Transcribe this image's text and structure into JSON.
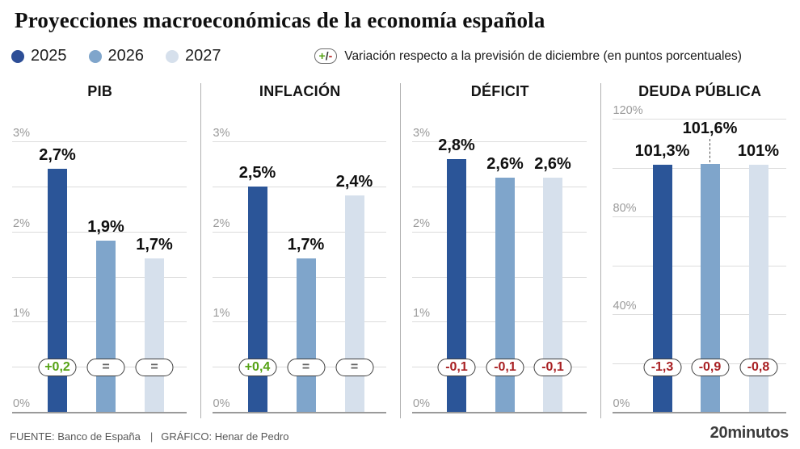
{
  "header": {
    "title": "Proyecciones macroeconómicas de la economía española",
    "legend": [
      {
        "label": "2025",
        "color": "#2d4e96"
      },
      {
        "label": "2026",
        "color": "#7fa5cb"
      },
      {
        "label": "2027",
        "color": "#d6e0ec"
      }
    ],
    "note_icon": {
      "plus": "+",
      "slash": "/",
      "minus": "-"
    },
    "note": "Variación respecto a la previsión de diciembre (en puntos porcentuales)"
  },
  "colors": {
    "bar_2025": "#2b5598",
    "bar_2026": "#7fa5cb",
    "bar_2027": "#d6e0ec",
    "positive": "#55a214",
    "negative": "#a81f22",
    "neutral": "#636363",
    "gridline": "#dcdcdc",
    "axis": "#9a9a9a"
  },
  "chart_data": [
    {
      "type": "bar",
      "title": "PIB",
      "categories": [
        "2025",
        "2026",
        "2027"
      ],
      "values": [
        2.7,
        1.9,
        1.7
      ],
      "value_labels": [
        "2,7%",
        "1,9%",
        "1,7%"
      ],
      "deltas": [
        "+0,2",
        "=",
        "="
      ],
      "ylim": [
        0,
        3
      ],
      "yticks": [
        {
          "value": 0,
          "label": "0%"
        },
        {
          "value": 0.5,
          "label": ""
        },
        {
          "value": 1,
          "label": "1%"
        },
        {
          "value": 1.5,
          "label": ""
        },
        {
          "value": 2,
          "label": "2%"
        },
        {
          "value": 2.5,
          "label": ""
        },
        {
          "value": 3,
          "label": "3%"
        }
      ],
      "label_raised": [
        false,
        false,
        false
      ]
    },
    {
      "type": "bar",
      "title": "INFLACIÓN",
      "categories": [
        "2025",
        "2026",
        "2027"
      ],
      "values": [
        2.5,
        1.7,
        2.4
      ],
      "value_labels": [
        "2,5%",
        "1,7%",
        "2,4%"
      ],
      "deltas": [
        "+0,4",
        "=",
        "="
      ],
      "ylim": [
        0,
        3
      ],
      "yticks": [
        {
          "value": 0,
          "label": "0%"
        },
        {
          "value": 0.5,
          "label": ""
        },
        {
          "value": 1,
          "label": "1%"
        },
        {
          "value": 1.5,
          "label": ""
        },
        {
          "value": 2,
          "label": "2%"
        },
        {
          "value": 2.5,
          "label": ""
        },
        {
          "value": 3,
          "label": "3%"
        }
      ],
      "label_raised": [
        false,
        false,
        false
      ]
    },
    {
      "type": "bar",
      "title": "DÉFICIT",
      "categories": [
        "2025",
        "2026",
        "2027"
      ],
      "values": [
        2.8,
        2.6,
        2.6
      ],
      "value_labels": [
        "2,8%",
        "2,6%",
        "2,6%"
      ],
      "deltas": [
        "-0,1",
        "-0,1",
        "-0,1"
      ],
      "ylim": [
        0,
        3
      ],
      "yticks": [
        {
          "value": 0,
          "label": "0%"
        },
        {
          "value": 0.5,
          "label": ""
        },
        {
          "value": 1,
          "label": "1%"
        },
        {
          "value": 1.5,
          "label": ""
        },
        {
          "value": 2,
          "label": "2%"
        },
        {
          "value": 2.5,
          "label": ""
        },
        {
          "value": 3,
          "label": "3%"
        }
      ],
      "label_raised": [
        false,
        false,
        false
      ]
    },
    {
      "type": "bar",
      "title": "DEUDA PÚBLICA",
      "categories": [
        "2025",
        "2026",
        "2027"
      ],
      "values": [
        101.3,
        101.6,
        101
      ],
      "value_labels": [
        "101,3%",
        "101,6%",
        "101%"
      ],
      "deltas": [
        "-1,3",
        "-0,9",
        "-0,8"
      ],
      "ylim": [
        0,
        120
      ],
      "yticks": [
        {
          "value": 0,
          "label": "0%"
        },
        {
          "value": 20,
          "label": ""
        },
        {
          "value": 40,
          "label": "40%"
        },
        {
          "value": 60,
          "label": ""
        },
        {
          "value": 80,
          "label": "80%"
        },
        {
          "value": 100,
          "label": ""
        },
        {
          "value": 120,
          "label": "120%"
        }
      ],
      "label_raised": [
        false,
        true,
        false
      ]
    }
  ],
  "footer": {
    "source": "FUENTE: Banco de España",
    "separator": "|",
    "credit": "GRÁFICO: Henar de Pedro",
    "brand": "20minutos"
  }
}
